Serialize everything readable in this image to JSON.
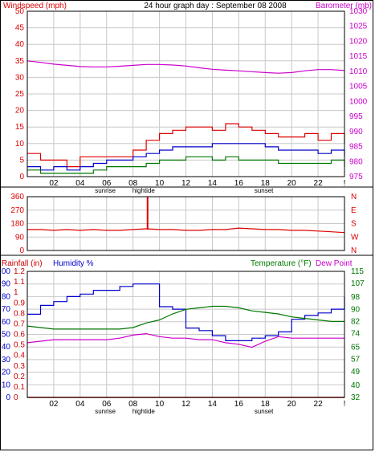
{
  "header": {
    "title": "24 hour graph day : September 08 2008",
    "left_label": "Windspeed (mph)",
    "right_label": "Barometer (mb)"
  },
  "colors": {
    "wind": "#dd0000",
    "gust": "#0000cc",
    "avg": "#007700",
    "baro": "#cc00cc",
    "rain": "#cc0000",
    "humidity": "#0000cc",
    "temp": "#007700",
    "dew": "#cc00cc",
    "grid": "#c8c8c8"
  },
  "x_ticks": [
    "02",
    "04",
    "06",
    "08",
    "10",
    "12",
    "14",
    "16",
    "18",
    "20",
    "22",
    "!"
  ],
  "events": {
    "sunrise": "sunrise",
    "hightide": "hightide",
    "sunset": "sunset"
  },
  "chart_data": [
    {
      "type": "line",
      "title": "24 hour graph day : September 08 2008",
      "ylabel": "Windspeed (mph)",
      "y2label": "Barometer (mb)",
      "ylim": [
        0,
        50
      ],
      "y2lim": [
        975,
        1030
      ],
      "yticks": [
        "0",
        "5",
        "10",
        "15",
        "20",
        "25",
        "30",
        "35",
        "40",
        "45",
        "50"
      ],
      "y2ticks": [
        "975",
        "980",
        "985",
        "990",
        "995",
        "1000",
        "1005",
        "1010",
        "1015",
        "1020",
        "1025",
        "1030"
      ],
      "x_hours": [
        0,
        1,
        2,
        3,
        4,
        5,
        6,
        7,
        8,
        9,
        10,
        11,
        12,
        13,
        14,
        15,
        16,
        17,
        18,
        19,
        20,
        21,
        22,
        23,
        24
      ],
      "series": [
        {
          "key": "wind",
          "values": [
            7,
            5,
            5,
            3,
            6,
            6,
            6,
            6,
            8,
            11,
            13,
            14,
            15,
            15,
            14,
            16,
            15,
            14,
            13,
            12,
            12,
            13,
            11,
            13,
            10
          ]
        },
        {
          "key": "gust",
          "values": [
            3,
            2,
            3,
            2,
            3,
            4,
            5,
            5,
            6,
            7,
            8,
            9,
            9,
            9,
            10,
            10,
            10,
            10,
            9,
            8,
            8,
            8,
            7,
            8,
            6
          ]
        },
        {
          "key": "avg",
          "values": [
            2,
            1,
            1,
            1,
            1,
            2,
            3,
            3,
            3,
            4,
            5,
            5,
            6,
            6,
            5,
            6,
            5,
            5,
            5,
            4,
            4,
            4,
            4,
            5,
            3
          ]
        },
        {
          "key": "baro",
          "axis": "right",
          "values": [
            1013.5,
            1013,
            1012.4,
            1012,
            1011.6,
            1011.5,
            1011.5,
            1011.7,
            1012,
            1012.3,
            1012.3,
            1012.1,
            1011.8,
            1011.2,
            1010.7,
            1010.4,
            1010.2,
            1009.9,
            1009.6,
            1009.4,
            1009.6,
            1010.2,
            1010.6,
            1010.6,
            1010.3
          ]
        }
      ]
    },
    {
      "type": "line",
      "ylabel": "Wind direction",
      "ylim": [
        0,
        360
      ],
      "yticks": [
        "0",
        "90",
        "180",
        "270",
        "360"
      ],
      "y2ticks": [
        "N",
        "W",
        "S",
        "E",
        "N"
      ],
      "x_hours": [
        0,
        1,
        2,
        3,
        4,
        5,
        6,
        7,
        8,
        9,
        10,
        11,
        12,
        13,
        14,
        15,
        16,
        17,
        18,
        19,
        20,
        21,
        22,
        23,
        24
      ],
      "series": [
        {
          "key": "dir",
          "values": [
            140,
            140,
            135,
            140,
            135,
            140,
            135,
            135,
            140,
            145,
            140,
            140,
            135,
            135,
            140,
            140,
            150,
            145,
            140,
            140,
            135,
            135,
            130,
            125,
            120
          ]
        }
      ],
      "spike": {
        "hour": 9.1,
        "value": 360
      }
    },
    {
      "type": "line",
      "ylabel": "Rainfall (in)",
      "ylabel2": "Humidity %",
      "y2label": "Temperature (°F)",
      "y2label2": "Dew Point",
      "ylim_rain": [
        0,
        1.2
      ],
      "ylim_humidity": [
        0,
        100
      ],
      "y2lim": [
        32,
        115
      ],
      "yticks_humidity": [
        "0",
        "10",
        "20",
        "30",
        "40",
        "50",
        "60",
        "70",
        "80",
        "90",
        "100"
      ],
      "yticks_rain": [
        "0",
        "0.1",
        "0.2",
        "0.3",
        "0.4",
        "0.5",
        "0.6",
        "0.7",
        "0.8",
        "0.9",
        "1",
        "1.1",
        "1.2"
      ],
      "y2ticks": [
        "32",
        "40",
        "49",
        "57",
        "65",
        "74",
        "82",
        "90",
        "98",
        "107",
        "115"
      ],
      "x_hours": [
        0,
        1,
        2,
        3,
        4,
        5,
        6,
        7,
        8,
        9,
        10,
        11,
        12,
        13,
        14,
        15,
        16,
        17,
        18,
        19,
        20,
        21,
        22,
        23,
        24
      ],
      "series": [
        {
          "key": "humidity",
          "values": [
            66,
            73,
            76,
            80,
            82,
            85,
            85,
            88,
            90,
            90,
            72,
            70,
            55,
            53,
            49,
            45,
            45,
            47,
            49,
            52,
            62,
            65,
            67,
            70,
            80
          ]
        },
        {
          "key": "temp",
          "axis": "right",
          "values": [
            79,
            78,
            77,
            77,
            77,
            77,
            77,
            77,
            78,
            81,
            83,
            87,
            90,
            91,
            92,
            92,
            91,
            89,
            88,
            87,
            85,
            84,
            83,
            82,
            82
          ]
        },
        {
          "key": "dew",
          "axis": "right",
          "values": [
            68,
            69,
            70,
            70,
            70,
            70,
            70,
            71,
            73,
            74,
            72,
            71,
            71,
            70,
            70,
            68,
            67,
            65,
            69,
            72,
            71,
            71,
            71,
            71,
            71
          ]
        },
        {
          "key": "rain",
          "values_rain": [
            0,
            0,
            0,
            0,
            0,
            0,
            0,
            0,
            0,
            0,
            0,
            0,
            0,
            0,
            0,
            0,
            0,
            0,
            0,
            0,
            0,
            0,
            0,
            0,
            0
          ]
        }
      ]
    }
  ]
}
